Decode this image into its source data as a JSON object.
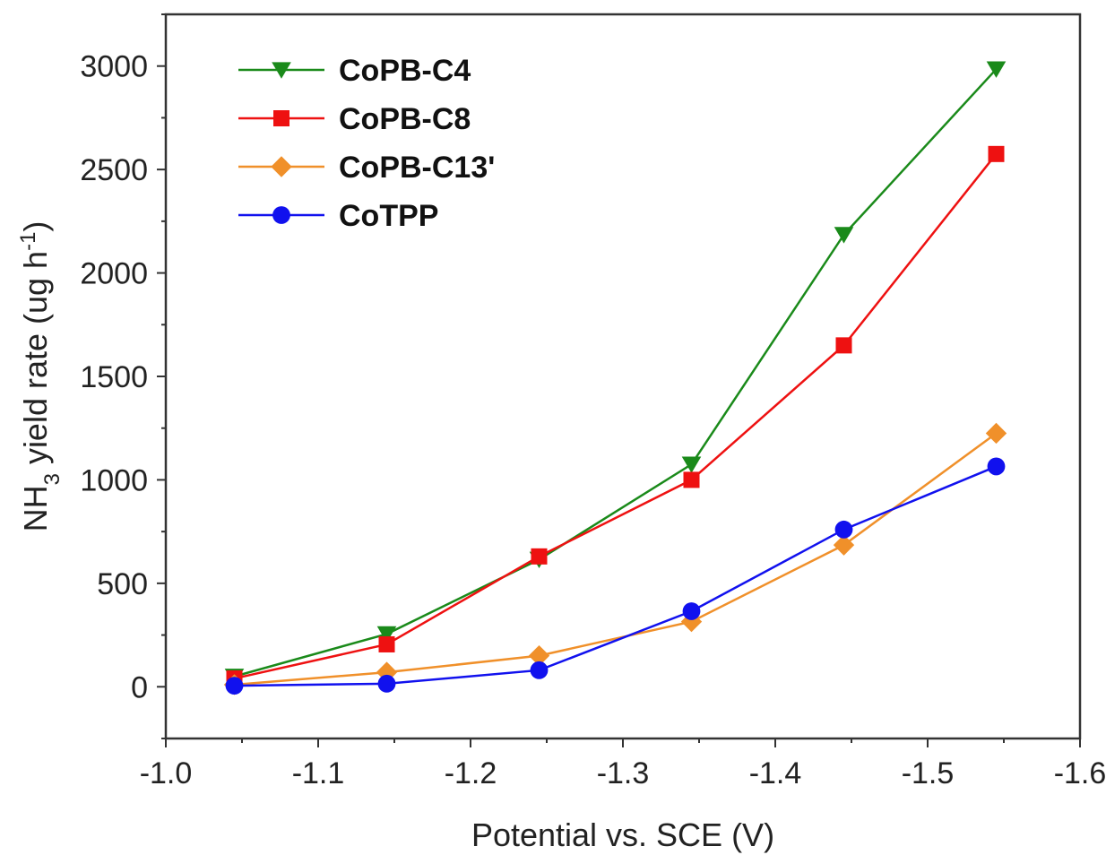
{
  "chart_data": {
    "type": "line",
    "title": "",
    "xlabel": "Potential vs. SCE (V)",
    "ylabel": {
      "prefix": "NH",
      "sub": "3",
      "middle": " yield rate (ug h",
      "sup": "-1",
      "suffix": ")"
    },
    "xlim": [
      -1.0,
      -1.6
    ],
    "ylim": [
      -250,
      3250
    ],
    "x_reversed": true,
    "x_ticks": [
      -1.0,
      -1.1,
      -1.2,
      -1.3,
      -1.4,
      -1.5,
      -1.6
    ],
    "x_tick_labels": [
      "-1.0",
      "-1.1",
      "-1.2",
      "-1.3",
      "-1.4",
      "-1.5",
      "-1.6"
    ],
    "y_ticks": [
      0,
      500,
      1000,
      1500,
      2000,
      2500,
      3000
    ],
    "y_tick_labels": [
      "0",
      "500",
      "1000",
      "1500",
      "2000",
      "2500",
      "3000"
    ],
    "grid": false,
    "legend_position": "top-left",
    "x": [
      -1.045,
      -1.145,
      -1.245,
      -1.345,
      -1.445,
      -1.545
    ],
    "series": [
      {
        "name": "CoPB-C4",
        "color": "#1a8a1a",
        "marker": "triangle-down",
        "values": [
          50,
          255,
          615,
          1075,
          2185,
          2985
        ]
      },
      {
        "name": "CoPB-C8",
        "color": "#ee1111",
        "marker": "square",
        "values": [
          40,
          205,
          630,
          1000,
          1650,
          2575
        ]
      },
      {
        "name": "CoPB-C13'",
        "color": "#f0902a",
        "marker": "diamond",
        "values": [
          10,
          70,
          150,
          315,
          685,
          1225
        ]
      },
      {
        "name": "CoTPP",
        "color": "#1111ee",
        "marker": "circle",
        "values": [
          5,
          15,
          80,
          365,
          760,
          1065
        ]
      }
    ]
  }
}
